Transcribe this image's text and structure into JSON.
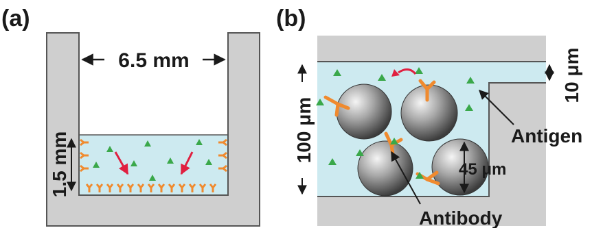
{
  "panel_a": {
    "label": "(a)",
    "width_label": "6.5 mm",
    "height_label": "1.5 mm"
  },
  "panel_b": {
    "label": "(b)",
    "height_label": "100 μm",
    "gap_label": "10 μm",
    "bead_label": "45 μm",
    "antigen_label": "Antigen",
    "antibody_label": "Antibody"
  },
  "colors": {
    "wall": "#cfcfcf",
    "wall_edge": "#555555",
    "liquid": "#cdeaf0",
    "antibody": "#f08a2e",
    "antigen": "#3aa84a",
    "arrow_red": "#e02040"
  }
}
